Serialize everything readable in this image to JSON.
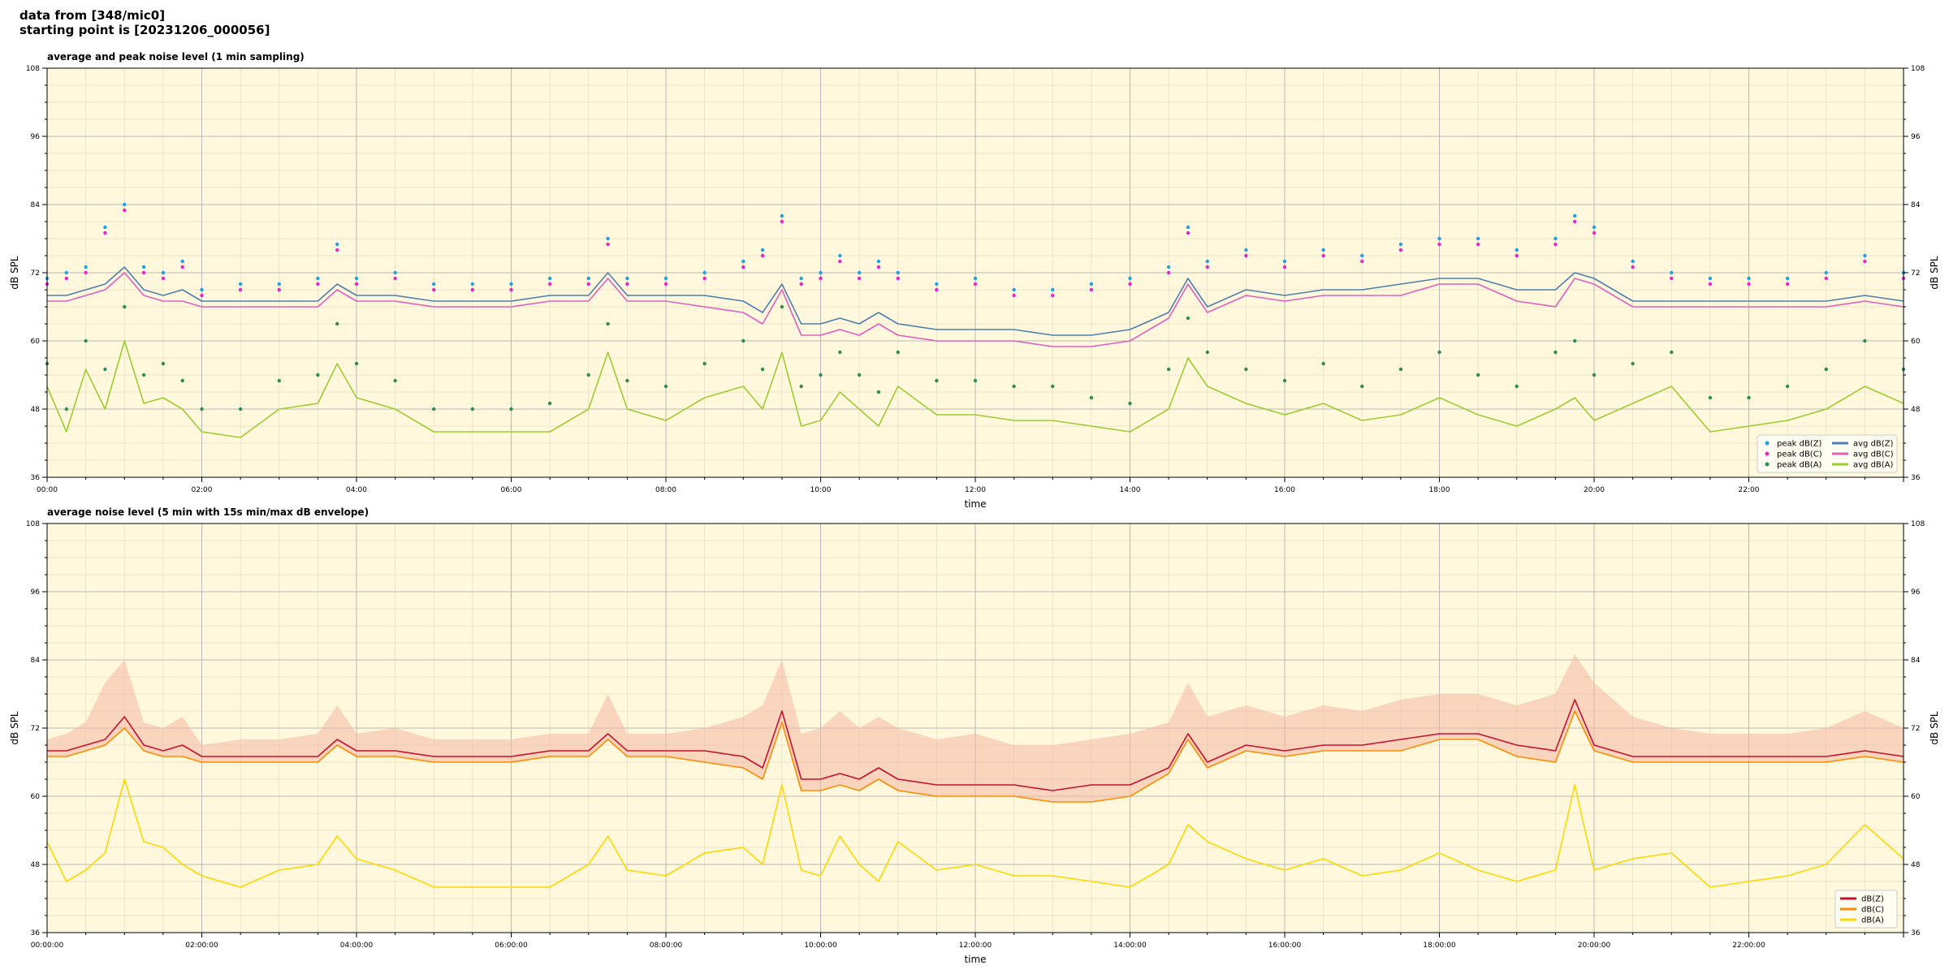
{
  "header": {
    "line1": "data from [348/mic0]",
    "line2": "starting point is [20231206_000056]"
  },
  "colors": {
    "background": "#fff8dc",
    "peak_z": "#1f9fe8",
    "peak_c": "#ee22cc",
    "peak_a": "#2e8b57",
    "avg_z": "#4f7fb0",
    "avg_c": "#e060c0",
    "avg_a": "#9acd32",
    "z": "#c8102e",
    "c": "#ff8c00",
    "a": "#ffd700",
    "envelope": "#f4b8a6"
  },
  "chart_data": [
    {
      "type": "line",
      "title": "average and peak noise level (1 min sampling)",
      "xlabel": "time",
      "ylabel": "dB SPL",
      "ylim": [
        36,
        108
      ],
      "xlim_hours": [
        0,
        24
      ],
      "x_ticks": [
        "00:00",
        "02:00",
        "04:00",
        "06:00",
        "08:00",
        "10:00",
        "12:00",
        "14:00",
        "16:00",
        "18:00",
        "20:00",
        "22:00"
      ],
      "y_ticks": [
        36,
        48,
        60,
        72,
        84,
        96,
        108
      ],
      "grid": true,
      "legend_position": "lower-right",
      "legend": [
        "peak dB(Z)",
        "peak dB(C)",
        "peak dB(A)",
        "avg dB(Z)",
        "avg dB(C)",
        "avg dB(A)"
      ],
      "x_hours": [
        0,
        0.25,
        0.5,
        0.75,
        1,
        1.25,
        1.5,
        1.75,
        2,
        2.5,
        3,
        3.5,
        3.75,
        4,
        4.5,
        5,
        5.5,
        6,
        6.5,
        7,
        7.25,
        7.5,
        8,
        8.5,
        9,
        9.25,
        9.5,
        9.75,
        10,
        10.25,
        10.5,
        10.75,
        11,
        11.5,
        12,
        12.5,
        13,
        13.5,
        14,
        14.5,
        14.75,
        15,
        15.5,
        16,
        16.5,
        17,
        17.5,
        18,
        18.5,
        19,
        19.5,
        19.75,
        20,
        20.5,
        21,
        21.5,
        22,
        22.5,
        23,
        23.5,
        24
      ],
      "series": [
        {
          "name": "avg dB(Z)",
          "values": [
            68,
            68,
            69,
            70,
            73,
            69,
            68,
            69,
            67,
            67,
            67,
            67,
            70,
            68,
            68,
            67,
            67,
            67,
            68,
            68,
            72,
            68,
            68,
            68,
            67,
            65,
            70,
            63,
            63,
            64,
            63,
            65,
            63,
            62,
            62,
            62,
            61,
            61,
            62,
            65,
            71,
            66,
            69,
            68,
            69,
            69,
            70,
            71,
            71,
            69,
            69,
            72,
            71,
            67,
            67,
            67,
            67,
            67,
            67,
            68,
            67
          ]
        },
        {
          "name": "avg dB(C)",
          "values": [
            67,
            67,
            68,
            69,
            72,
            68,
            67,
            67,
            66,
            66,
            66,
            66,
            69,
            67,
            67,
            66,
            66,
            66,
            67,
            67,
            71,
            67,
            67,
            66,
            65,
            63,
            69,
            61,
            61,
            62,
            61,
            63,
            61,
            60,
            60,
            60,
            59,
            59,
            60,
            64,
            70,
            65,
            68,
            67,
            68,
            68,
            68,
            70,
            70,
            67,
            66,
            71,
            70,
            66,
            66,
            66,
            66,
            66,
            66,
            67,
            66
          ]
        },
        {
          "name": "avg dB(A)",
          "values": [
            52,
            44,
            55,
            48,
            60,
            49,
            50,
            48,
            44,
            43,
            48,
            49,
            56,
            50,
            48,
            44,
            44,
            44,
            44,
            48,
            58,
            48,
            46,
            50,
            52,
            48,
            58,
            45,
            46,
            51,
            48,
            45,
            52,
            47,
            47,
            46,
            46,
            45,
            44,
            48,
            57,
            52,
            49,
            47,
            49,
            46,
            47,
            50,
            47,
            45,
            48,
            50,
            46,
            49,
            52,
            44,
            45,
            46,
            48,
            52,
            49
          ]
        },
        {
          "name": "peak dB(Z)",
          "values": [
            71,
            72,
            73,
            80,
            84,
            73,
            72,
            74,
            69,
            70,
            70,
            71,
            77,
            71,
            72,
            70,
            70,
            70,
            71,
            71,
            78,
            71,
            71,
            72,
            74,
            76,
            82,
            71,
            72,
            75,
            72,
            74,
            72,
            70,
            71,
            69,
            69,
            70,
            71,
            73,
            80,
            74,
            76,
            74,
            76,
            75,
            77,
            78,
            78,
            76,
            78,
            82,
            80,
            74,
            72,
            71,
            71,
            71,
            72,
            75,
            72
          ]
        },
        {
          "name": "peak dB(C)",
          "values": [
            70,
            71,
            72,
            79,
            83,
            72,
            71,
            73,
            68,
            69,
            69,
            70,
            76,
            70,
            71,
            69,
            69,
            69,
            70,
            70,
            77,
            70,
            70,
            71,
            73,
            75,
            81,
            70,
            71,
            74,
            71,
            73,
            71,
            69,
            70,
            68,
            68,
            69,
            70,
            72,
            79,
            73,
            75,
            73,
            75,
            74,
            76,
            77,
            77,
            75,
            77,
            81,
            79,
            73,
            71,
            70,
            70,
            70,
            71,
            74,
            71
          ]
        },
        {
          "name": "peak dB(A)",
          "values": [
            56,
            48,
            60,
            55,
            66,
            54,
            56,
            53,
            48,
            48,
            53,
            54,
            63,
            56,
            53,
            48,
            48,
            48,
            49,
            54,
            63,
            53,
            52,
            56,
            60,
            55,
            66,
            52,
            54,
            58,
            54,
            51,
            58,
            53,
            53,
            52,
            52,
            50,
            49,
            55,
            64,
            58,
            55,
            53,
            56,
            52,
            55,
            58,
            54,
            52,
            58,
            60,
            54,
            56,
            58,
            50,
            50,
            52,
            55,
            60,
            55
          ]
        }
      ]
    },
    {
      "type": "line",
      "title": "average noise level (5 min with 15s min/max dB envelope)",
      "xlabel": "time",
      "ylabel": "dB SPL",
      "ylim": [
        36,
        108
      ],
      "xlim_hours": [
        0,
        24
      ],
      "x_ticks": [
        "00:00:00",
        "02:00:00",
        "04:00:00",
        "06:00:00",
        "08:00:00",
        "10:00:00",
        "12:00:00",
        "14:00:00",
        "16:00:00",
        "18:00:00",
        "20:00:00",
        "22:00:00"
      ],
      "y_ticks": [
        36,
        48,
        60,
        72,
        84,
        96,
        108
      ],
      "grid": true,
      "legend_position": "lower-right",
      "legend": [
        "dB(Z)",
        "dB(C)",
        "dB(A)"
      ],
      "x_hours": [
        0,
        0.25,
        0.5,
        0.75,
        1,
        1.25,
        1.5,
        1.75,
        2,
        2.5,
        3,
        3.5,
        3.75,
        4,
        4.5,
        5,
        5.5,
        6,
        6.5,
        7,
        7.25,
        7.5,
        8,
        8.5,
        9,
        9.25,
        9.5,
        9.75,
        10,
        10.25,
        10.5,
        10.75,
        11,
        11.5,
        12,
        12.5,
        13,
        13.5,
        14,
        14.5,
        14.75,
        15,
        15.5,
        16,
        16.5,
        17,
        17.5,
        18,
        18.5,
        19,
        19.5,
        19.75,
        20,
        20.5,
        21,
        21.5,
        22,
        22.5,
        23,
        23.5,
        24
      ],
      "series": [
        {
          "name": "dB(Z)",
          "values": [
            68,
            68,
            69,
            70,
            74,
            69,
            68,
            69,
            67,
            67,
            67,
            67,
            70,
            68,
            68,
            67,
            67,
            67,
            68,
            68,
            71,
            68,
            68,
            68,
            67,
            65,
            75,
            63,
            63,
            64,
            63,
            65,
            63,
            62,
            62,
            62,
            61,
            62,
            62,
            65,
            71,
            66,
            69,
            68,
            69,
            69,
            70,
            71,
            71,
            69,
            68,
            77,
            69,
            67,
            67,
            67,
            67,
            67,
            67,
            68,
            67
          ]
        },
        {
          "name": "dB(C)",
          "values": [
            67,
            67,
            68,
            69,
            72,
            68,
            67,
            67,
            66,
            66,
            66,
            66,
            69,
            67,
            67,
            66,
            66,
            66,
            67,
            67,
            70,
            67,
            67,
            66,
            65,
            63,
            73,
            61,
            61,
            62,
            61,
            63,
            61,
            60,
            60,
            60,
            59,
            59,
            60,
            64,
            70,
            65,
            68,
            67,
            68,
            68,
            68,
            70,
            70,
            67,
            66,
            75,
            68,
            66,
            66,
            66,
            66,
            66,
            66,
            67,
            66
          ]
        },
        {
          "name": "dB(A)",
          "values": [
            52,
            45,
            47,
            50,
            63,
            52,
            51,
            48,
            46,
            44,
            47,
            48,
            53,
            49,
            47,
            44,
            44,
            44,
            44,
            48,
            53,
            47,
            46,
            50,
            51,
            48,
            62,
            47,
            46,
            53,
            48,
            45,
            52,
            47,
            48,
            46,
            46,
            45,
            44,
            48,
            55,
            52,
            49,
            47,
            49,
            46,
            47,
            50,
            47,
            45,
            47,
            62,
            47,
            49,
            50,
            44,
            45,
            46,
            48,
            55,
            49
          ]
        },
        {
          "name": "envelope max",
          "values": [
            70,
            71,
            73,
            80,
            84,
            73,
            72,
            74,
            69,
            70,
            70,
            71,
            76,
            71,
            72,
            70,
            70,
            70,
            71,
            71,
            78,
            71,
            71,
            72,
            74,
            76,
            84,
            71,
            72,
            75,
            72,
            74,
            72,
            70,
            71,
            69,
            69,
            70,
            71,
            73,
            80,
            74,
            76,
            74,
            76,
            75,
            77,
            78,
            78,
            76,
            78,
            85,
            80,
            74,
            72,
            71,
            71,
            71,
            72,
            75,
            72
          ]
        }
      ]
    }
  ]
}
